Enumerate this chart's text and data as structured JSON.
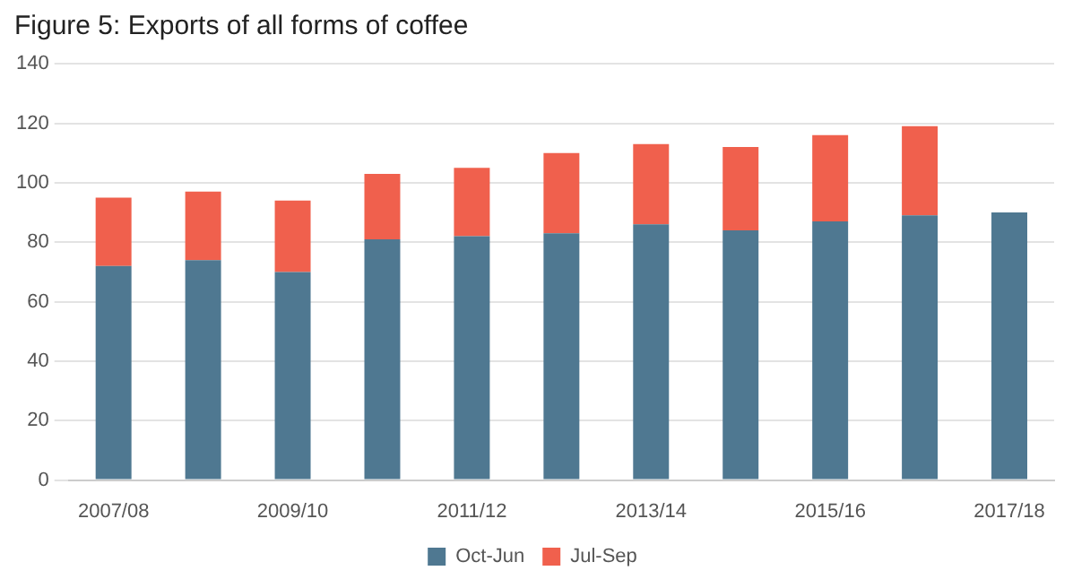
{
  "chart_data": {
    "type": "bar",
    "title": "Figure 5: Exports of all forms of coffee",
    "stacked": true,
    "categories": [
      "2007/08",
      null,
      "2009/10",
      null,
      "2011/12",
      null,
      "2013/14",
      null,
      "2015/16",
      null,
      "2017/18"
    ],
    "series": [
      {
        "name": "Oct-Jun",
        "color": "#4f7891",
        "values": [
          72,
          74,
          70,
          81,
          82,
          83,
          86,
          84,
          87,
          89,
          90
        ]
      },
      {
        "name": "Jul-Sep",
        "color": "#f0604d",
        "values": [
          23,
          23,
          24,
          22,
          23,
          27,
          27,
          28,
          29,
          30,
          null
        ]
      }
    ],
    "ylim": [
      0,
      140
    ],
    "yticks": [
      0,
      20,
      40,
      60,
      80,
      100,
      120,
      140
    ],
    "grid": "y",
    "legend": "bottom"
  }
}
